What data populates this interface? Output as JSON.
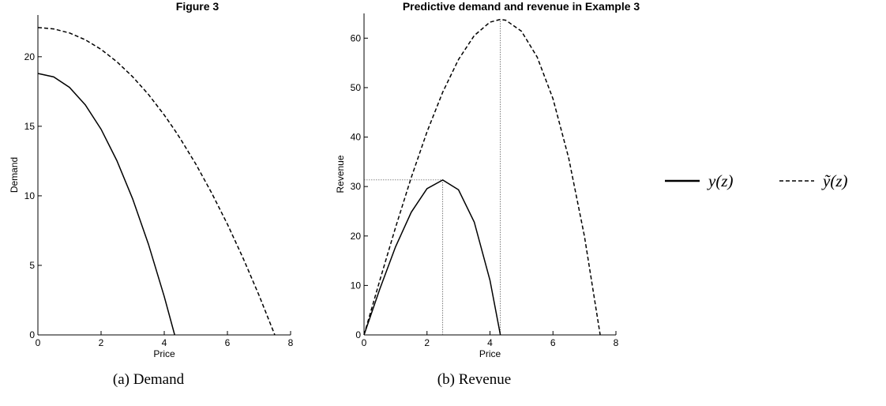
{
  "figure": {
    "label": "Figure 3",
    "title": "Predictive demand and revenue in Example 3"
  },
  "chart_data": [
    {
      "type": "line",
      "caption": "(a) Demand",
      "xlabel": "Price",
      "ylabel": "Demand",
      "xlim": [
        0,
        8
      ],
      "xticks": [
        0,
        2,
        4,
        6,
        8
      ],
      "ylim": [
        0,
        23
      ],
      "yticks": [
        0,
        5,
        10,
        15,
        20
      ],
      "series": [
        {
          "color": "#000000",
          "style": "solid",
          "x": [
            0,
            0.5,
            1,
            1.5,
            2,
            2.5,
            3,
            3.5,
            4,
            4.33
          ],
          "values": [
            18.8,
            18.55,
            17.8,
            16.54,
            14.79,
            12.53,
            9.78,
            6.52,
            2.76,
            0
          ]
        },
        {
          "color": "#000000",
          "style": "dashed",
          "x": [
            0,
            0.5,
            1,
            1.5,
            2,
            2.5,
            3,
            3.5,
            4,
            4.33,
            4.5,
            5,
            5.5,
            6,
            6.5,
            7,
            7.5
          ],
          "values": [
            22.1,
            22.0,
            21.71,
            21.22,
            20.53,
            19.64,
            18.56,
            17.29,
            15.81,
            14.73,
            14.14,
            12.28,
            10.21,
            7.96,
            5.5,
            2.85,
            0
          ]
        }
      ]
    },
    {
      "type": "line",
      "caption": "(b) Revenue",
      "xlabel": "Price",
      "ylabel": "Revenue",
      "xlim": [
        0,
        8
      ],
      "xticks": [
        0,
        2,
        4,
        6,
        8
      ],
      "ylim": [
        0,
        65
      ],
      "yticks": [
        0,
        10,
        20,
        30,
        40,
        50,
        60
      ],
      "series": [
        {
          "name": "y(z)",
          "color": "#000000",
          "style": "solid",
          "x": [
            0,
            0.5,
            1,
            1.5,
            2,
            2.5,
            3,
            3.5,
            4,
            4.33
          ],
          "values": [
            0,
            9.27,
            17.8,
            24.81,
            29.58,
            31.33,
            29.34,
            22.82,
            11.04,
            0
          ]
        },
        {
          "name": "ỹ(z)",
          "color": "#000000",
          "style": "dashed",
          "x": [
            0,
            0.5,
            1,
            1.5,
            2,
            2.5,
            3,
            3.5,
            4,
            4.33,
            4.5,
            5,
            5.5,
            6,
            6.5,
            7,
            7.5
          ],
          "values": [
            0,
            11.0,
            21.71,
            31.83,
            41.06,
            49.1,
            55.68,
            60.52,
            63.24,
            63.79,
            63.63,
            61.4,
            56.16,
            47.76,
            35.75,
            19.95,
            0
          ]
        }
      ],
      "vlines": [
        {
          "x": 2.5,
          "y": 31.33
        },
        {
          "x": 4.33,
          "y": 63.79
        }
      ],
      "hlines": [
        {
          "x": 2.5,
          "y": 31.33
        }
      ]
    }
  ]
}
